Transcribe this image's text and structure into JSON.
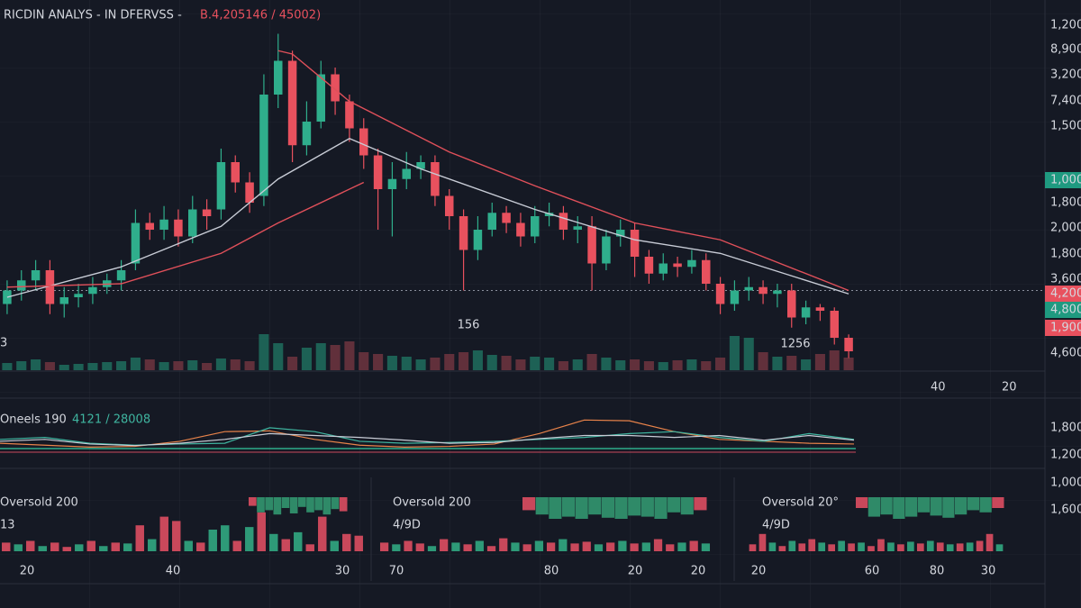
{
  "header": {
    "title": "RICDIN ANALYS - IN DFERVSS -",
    "quote": "B.4,205146 / 45002)"
  },
  "price_axis": [
    {
      "label": "1,200",
      "style": "plain"
    },
    {
      "label": "8,900",
      "style": "plain"
    },
    {
      "label": "3,200",
      "style": "plain"
    },
    {
      "label": "7,400",
      "style": "plain"
    },
    {
      "label": "1,500",
      "style": "plain"
    },
    {
      "label": "1,000",
      "style": "teal"
    },
    {
      "label": "1,800",
      "style": "plain"
    },
    {
      "label": "2,000",
      "style": "plain"
    },
    {
      "label": "1,800",
      "style": "plain"
    },
    {
      "label": "3,600",
      "style": "plain"
    },
    {
      "label": "4,200",
      "style": "red"
    },
    {
      "label": "4,800",
      "style": "teal"
    },
    {
      "label": "1,900",
      "style": "red"
    },
    {
      "label": "4,600",
      "style": "plain"
    }
  ],
  "lower_axis": [
    "1,800",
    "1,200",
    "1,000",
    "1,600"
  ],
  "time_axis": [
    "40",
    "20"
  ],
  "chart_data": [
    {
      "type": "candlestick",
      "open": [
        18,
        22,
        25,
        28,
        18,
        20,
        21,
        23,
        25,
        30,
        42,
        40,
        43,
        38,
        46,
        46,
        60,
        54,
        50,
        80,
        90,
        65,
        72,
        86,
        78,
        70,
        62,
        52,
        55,
        58,
        60,
        50,
        44,
        34,
        40,
        45,
        42,
        38,
        44,
        45,
        40,
        41,
        30,
        38,
        40,
        32,
        27,
        30,
        29,
        31,
        24,
        18,
        22,
        23,
        21,
        22,
        14,
        17,
        16,
        8
      ],
      "high": [
        25,
        28,
        31,
        31,
        23,
        24,
        26,
        27,
        31,
        46,
        45,
        47,
        46,
        50,
        49,
        64,
        62,
        57,
        86,
        98,
        93,
        78,
        90,
        88,
        80,
        73,
        64,
        60,
        63,
        62,
        62,
        52,
        46,
        44,
        48,
        47,
        45,
        47,
        48,
        47,
        44,
        44,
        40,
        43,
        42,
        34,
        33,
        32,
        34,
        33,
        26,
        25,
        26,
        25,
        24,
        24,
        19,
        18,
        17,
        9
      ],
      "low": [
        15,
        19,
        22,
        15,
        14,
        17,
        18,
        21,
        22,
        28,
        37,
        37,
        35,
        36,
        40,
        43,
        51,
        45,
        47,
        76,
        60,
        62,
        70,
        74,
        66,
        58,
        40,
        38,
        52,
        55,
        47,
        40,
        22,
        31,
        38,
        39,
        35,
        36,
        41,
        37,
        36,
        22,
        28,
        35,
        26,
        24,
        25,
        26,
        27,
        22,
        15,
        16,
        19,
        18,
        17,
        11,
        12,
        13,
        6,
        2
      ],
      "close": [
        22,
        25,
        28,
        18,
        20,
        21,
        23,
        25,
        28,
        42,
        40,
        43,
        38,
        46,
        44,
        60,
        54,
        48,
        80,
        90,
        65,
        72,
        86,
        78,
        70,
        62,
        52,
        55,
        58,
        60,
        50,
        44,
        34,
        40,
        45,
        42,
        38,
        44,
        45,
        40,
        41,
        30,
        38,
        40,
        32,
        27,
        30,
        29,
        31,
        24,
        18,
        22,
        23,
        21,
        22,
        14,
        17,
        16,
        8,
        4
      ],
      "ylim": [
        0,
        100
      ],
      "up_color": "#2fae8c",
      "down_color": "#e8515e",
      "price_line": 22,
      "lines": [
        {
          "color": "#c8ccd6",
          "x": [
            0,
            8,
            15,
            19,
            24,
            29,
            37,
            44,
            50,
            59
          ],
          "values": [
            20,
            29,
            41,
            55,
            67,
            58,
            46,
            37,
            33,
            21
          ]
        },
        {
          "color": "#e0505a",
          "x": [
            0,
            8,
            15,
            19,
            25
          ],
          "values": [
            23,
            24,
            33,
            42,
            54
          ]
        },
        {
          "color": "#e0505a",
          "x": [
            19,
            20,
            24,
            31,
            37,
            44,
            50,
            59
          ],
          "values": [
            93,
            92,
            78,
            63,
            53,
            42,
            37,
            22
          ]
        }
      ],
      "volume": [
        8,
        10,
        12,
        9,
        6,
        7,
        8,
        9,
        10,
        14,
        12,
        9,
        10,
        11,
        8,
        13,
        12,
        10,
        40,
        30,
        15,
        25,
        30,
        28,
        32,
        20,
        18,
        16,
        15,
        12,
        14,
        18,
        20,
        22,
        17,
        16,
        12,
        15,
        14,
        10,
        12,
        18,
        14,
        11,
        12,
        10,
        9,
        11,
        12,
        10,
        14,
        38,
        36,
        20,
        15,
        16,
        12,
        18,
        22,
        14
      ],
      "volume_ylim": [
        0,
        60
      ],
      "annotations": [
        "156",
        "1256",
        "3"
      ]
    },
    {
      "type": "line",
      "title": "Oneels 190",
      "subtitle": "4121 / 28008",
      "ylim": [
        0,
        100
      ],
      "series": [
        {
          "color": "#e8834a",
          "values": [
            30,
            25,
            20,
            22,
            35,
            60,
            62,
            40,
            25,
            20,
            22,
            28,
            55,
            90,
            88,
            60,
            40,
            35,
            30,
            28
          ]
        },
        {
          "color": "#3fb5a0",
          "values": [
            40,
            45,
            30,
            25,
            28,
            30,
            70,
            60,
            35,
            30,
            32,
            35,
            40,
            45,
            55,
            60,
            45,
            35,
            55,
            40
          ]
        },
        {
          "color": "#c8ccd6",
          "values": [
            35,
            40,
            28,
            24,
            30,
            40,
            55,
            50,
            45,
            38,
            30,
            32,
            42,
            50,
            50,
            45,
            50,
            38,
            50,
            38
          ]
        }
      ]
    },
    {
      "type": "bar",
      "title": "Oversold 200",
      "subtitle": "13",
      "xlabels": [
        "20",
        "40",
        "30"
      ],
      "values": [
        10,
        8,
        12,
        6,
        10,
        5,
        8,
        12,
        6,
        10,
        9,
        30,
        14,
        40,
        35,
        12,
        10,
        25,
        30,
        12,
        28,
        45,
        20,
        14,
        22,
        8,
        40,
        12,
        20,
        18
      ],
      "up": [
        false,
        true,
        false,
        true,
        false,
        false,
        true,
        false,
        true,
        false,
        true,
        false,
        true,
        false,
        false,
        true,
        false,
        true,
        true,
        false,
        true,
        false,
        true,
        false,
        true,
        false,
        false,
        true,
        false,
        false
      ],
      "ylim": [
        0,
        50
      ],
      "up_color": "#2e9a78",
      "down_color": "#c9485b",
      "strip": [
        8,
        14,
        12,
        16,
        10,
        15,
        9,
        14,
        12,
        16,
        11,
        13
      ],
      "strip_ylim": [
        0,
        20
      ],
      "strip_color": "#2f8a68"
    },
    {
      "type": "bar",
      "title": "Oversold 200",
      "subtitle": "4/9D",
      "xlabels": [
        "70",
        "80",
        "20",
        "20"
      ],
      "values": [
        10,
        8,
        12,
        9,
        6,
        14,
        10,
        8,
        12,
        6,
        15,
        10,
        8,
        12,
        10,
        14,
        9,
        11,
        8,
        10,
        12,
        9,
        10,
        14,
        8,
        10,
        12,
        9
      ],
      "up": [
        false,
        true,
        false,
        false,
        true,
        false,
        true,
        false,
        true,
        false,
        false,
        true,
        false,
        true,
        false,
        true,
        false,
        false,
        true,
        false,
        true,
        false,
        true,
        false,
        false,
        true,
        false,
        true
      ],
      "ylim": [
        0,
        50
      ],
      "up_color": "#2e9a78",
      "down_color": "#c9485b",
      "strip": [
        12,
        16,
        20,
        18,
        20,
        16,
        19,
        20,
        17,
        18,
        20,
        14,
        16,
        12
      ],
      "strip_ylim": [
        0,
        20
      ],
      "strip_color": "#2f8a68"
    },
    {
      "type": "bar",
      "title": "Oversold 20°",
      "subtitle": "4/9D",
      "xlabels": [
        "20",
        "60",
        "80",
        "30"
      ],
      "values": [
        8,
        20,
        10,
        6,
        12,
        9,
        14,
        10,
        8,
        12,
        9,
        10,
        6,
        14,
        10,
        8,
        11,
        9,
        12,
        10,
        8,
        9,
        10,
        12,
        20,
        8
      ],
      "up": [
        false,
        false,
        true,
        false,
        true,
        false,
        false,
        true,
        false,
        true,
        false,
        true,
        false,
        false,
        true,
        false,
        true,
        false,
        true,
        false,
        true,
        false,
        true,
        false,
        false,
        true
      ],
      "ylim": [
        0,
        50
      ],
      "up_color": "#2e9a78",
      "down_color": "#c9485b",
      "strip": [
        10,
        18,
        16,
        20,
        18,
        14,
        17,
        19,
        16,
        12,
        14,
        10
      ],
      "strip_ylim": [
        0,
        20
      ],
      "strip_color": "#2f8a68"
    }
  ]
}
